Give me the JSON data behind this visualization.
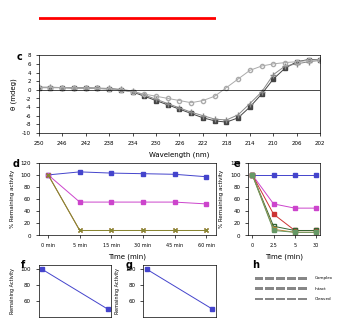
{
  "panel_c": {
    "title": "c",
    "xlabel": "Wavelength (nm)",
    "ylabel": "θ (mdeg)",
    "xlim": [
      200,
      250
    ],
    "ylim": [
      -10,
      8
    ],
    "xticks": [
      250,
      246,
      242,
      238,
      234,
      230,
      226,
      222,
      218,
      214,
      210,
      206,
      202
    ],
    "yticks": [
      -10,
      -8,
      -6,
      -4,
      -2,
      0,
      2,
      4,
      6,
      8
    ],
    "series": [
      {
        "x": [
          250,
          248,
          246,
          244,
          242,
          240,
          238,
          236,
          234,
          232,
          230,
          228,
          226,
          224,
          222,
          220,
          218,
          216,
          214,
          212,
          210,
          208,
          206,
          204,
          202
        ],
        "y": [
          0.5,
          0.5,
          0.5,
          0.4,
          0.4,
          0.3,
          0.2,
          0.0,
          -0.5,
          -1.5,
          -2.5,
          -3.5,
          -4.5,
          -5.5,
          -6.5,
          -7.2,
          -7.5,
          -6.5,
          -4.0,
          -1.0,
          2.5,
          5.0,
          6.5,
          7.0,
          7.0
        ],
        "color": "#444444",
        "marker": "s",
        "markersize": 3,
        "linestyle": "-"
      },
      {
        "x": [
          250,
          248,
          246,
          244,
          242,
          240,
          238,
          236,
          234,
          232,
          230,
          228,
          226,
          224,
          222,
          220,
          218,
          216,
          214,
          212,
          210,
          208,
          206,
          204,
          202
        ],
        "y": [
          0.6,
          0.6,
          0.5,
          0.5,
          0.5,
          0.4,
          0.3,
          0.1,
          -0.3,
          -1.2,
          -2.2,
          -3.2,
          -4.2,
          -5.2,
          -6.0,
          -6.8,
          -7.0,
          -5.8,
          -3.2,
          -0.5,
          3.5,
          5.5,
          6.0,
          6.5,
          6.8
        ],
        "color": "#888888",
        "marker": "+",
        "markersize": 4,
        "linestyle": "-"
      },
      {
        "x": [
          250,
          248,
          246,
          244,
          242,
          240,
          238,
          236,
          234,
          232,
          230,
          228,
          226,
          224,
          222,
          220,
          218,
          216,
          214,
          212,
          210,
          208,
          206,
          204,
          202
        ],
        "y": [
          0.5,
          0.5,
          0.5,
          0.4,
          0.4,
          0.3,
          0.2,
          -0.1,
          -0.5,
          -1.0,
          -1.5,
          -2.0,
          -2.5,
          -3.0,
          -2.5,
          -1.5,
          0.5,
          2.5,
          4.5,
          5.5,
          6.0,
          6.3,
          6.5,
          6.8,
          7.0
        ],
        "color": "#aaaaaa",
        "marker": "o",
        "markersize": 3,
        "linestyle": "-",
        "markerfacecolor": "none"
      }
    ]
  },
  "panel_d": {
    "title": "d",
    "xlabel": "Time (min)",
    "ylabel": "% Remaining activity",
    "xtick_labels": [
      "0 min",
      "5 min",
      "15 min",
      "30 min",
      "45 min",
      "60 min"
    ],
    "xtick_vals": [
      0,
      1,
      2,
      3,
      4,
      5
    ],
    "ylim": [
      0,
      120
    ],
    "yticks": [
      0,
      20,
      40,
      60,
      80,
      100,
      120
    ],
    "series": [
      {
        "x": [
          0,
          1,
          2,
          3,
          4,
          5
        ],
        "y": [
          100,
          105,
          103,
          102,
          101,
          97
        ],
        "color": "#4444cc",
        "marker": "s",
        "markersize": 3
      },
      {
        "x": [
          0,
          1,
          2,
          3,
          4,
          5
        ],
        "y": [
          100,
          55,
          55,
          55,
          55,
          52
        ],
        "color": "#cc44cc",
        "marker": "s",
        "markersize": 3
      },
      {
        "x": [
          0,
          1,
          2,
          3,
          4,
          5
        ],
        "y": [
          100,
          8,
          8,
          8,
          8,
          8
        ],
        "color": "#aa6633",
        "marker": "x",
        "markersize": 3
      },
      {
        "x": [
          0,
          1,
          2,
          3,
          4,
          5
        ],
        "y": [
          100,
          8,
          8,
          8,
          8,
          8
        ],
        "color": "#888833",
        "marker": "x",
        "markersize": 3
      }
    ]
  },
  "panel_e": {
    "title": "e",
    "xlabel": "Time (min)",
    "ylabel": "% Remaining activity",
    "xtick_labels": [
      "0",
      "2.5",
      "5",
      "30"
    ],
    "xtick_vals": [
      0,
      1,
      2,
      3
    ],
    "ylim": [
      0,
      120
    ],
    "yticks": [
      0,
      20,
      40,
      60,
      80,
      100,
      120
    ],
    "series": [
      {
        "x": [
          0,
          1,
          2,
          3
        ],
        "y": [
          100,
          100,
          100,
          100
        ],
        "color": "#4444cc",
        "marker": "s",
        "markersize": 3
      },
      {
        "x": [
          0,
          1,
          2,
          3
        ],
        "y": [
          100,
          52,
          45,
          45
        ],
        "color": "#cc44cc",
        "marker": "s",
        "markersize": 3
      },
      {
        "x": [
          0,
          1,
          2,
          3
        ],
        "y": [
          100,
          35,
          8,
          8
        ],
        "color": "#cc3333",
        "marker": "s",
        "markersize": 3
      },
      {
        "x": [
          0,
          1,
          2,
          3
        ],
        "y": [
          100,
          15,
          8,
          8
        ],
        "color": "#336633",
        "marker": "s",
        "markersize": 3,
        "markerfacecolor": "none"
      },
      {
        "x": [
          0,
          1,
          2,
          3
        ],
        "y": [
          100,
          10,
          5,
          5
        ],
        "color": "#cc8833",
        "marker": "s",
        "markersize": 3
      },
      {
        "x": [
          0,
          1,
          2,
          3
        ],
        "y": [
          100,
          8,
          5,
          5
        ],
        "color": "#669966",
        "marker": "s",
        "markersize": 3
      }
    ]
  },
  "panel_f": {
    "title": "f",
    "ylabel": "Remaining Activity",
    "series": [
      {
        "x": [
          0,
          1
        ],
        "y": [
          100,
          50
        ],
        "color": "#4444cc",
        "marker": "s",
        "markersize": 3
      }
    ]
  },
  "panel_g": {
    "title": "g",
    "ylabel": "Remaining Activity",
    "series": [
      {
        "x": [
          0,
          1
        ],
        "y": [
          100,
          50
        ],
        "color": "#4444cc",
        "marker": "s",
        "markersize": 3
      }
    ]
  },
  "top_strip_color_left": "#cc0000",
  "top_strip_color_right": "#cc88cc",
  "background_color": "#ffffff"
}
